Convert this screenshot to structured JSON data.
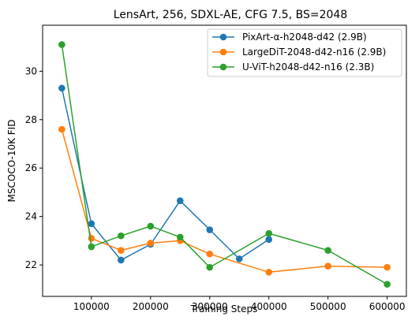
{
  "chart_data": {
    "type": "line",
    "title": "LensArt, 256, SDXL-AE, CFG 7.5, BS=2048",
    "xlabel": "Training Steps",
    "ylabel": "MSCOCO-10K FID",
    "xlim": [
      17500,
      632500
    ],
    "ylim": [
      20.7,
      31.9
    ],
    "xticks": [
      100000,
      200000,
      300000,
      400000,
      500000,
      600000
    ],
    "xtick_labels": [
      "100000",
      "200000",
      "300000",
      "400000",
      "500000",
      "600000"
    ],
    "yticks": [
      22,
      24,
      26,
      28,
      30
    ],
    "ytick_labels": [
      "22",
      "24",
      "26",
      "28",
      "30"
    ],
    "grid": false,
    "legend_position": "top-right",
    "series": [
      {
        "name": "PixArt-α-h2048-d42 (2.9B)",
        "color": "#1f77b4",
        "x": [
          50000,
          100000,
          150000,
          200000,
          250000,
          300000,
          350000,
          400000
        ],
        "y": [
          29.3,
          23.7,
          22.2,
          22.85,
          24.65,
          23.45,
          22.25,
          23.05
        ]
      },
      {
        "name": "LargeDiT-2048-d42-n16 (2.9B)",
        "color": "#ff7f0e",
        "x": [
          50000,
          100000,
          150000,
          200000,
          250000,
          300000,
          400000,
          500000,
          600000
        ],
        "y": [
          27.6,
          23.1,
          22.6,
          22.9,
          23.0,
          22.45,
          21.7,
          21.95,
          21.9
        ]
      },
      {
        "name": "U-ViT-h2048-d42-n16 (2.3B)",
        "color": "#2ca02c",
        "x": [
          50000,
          100000,
          150000,
          200000,
          250000,
          300000,
          400000,
          500000,
          600000
        ],
        "y": [
          31.1,
          22.75,
          23.2,
          23.6,
          23.15,
          21.9,
          23.3,
          22.6,
          21.2
        ]
      }
    ]
  }
}
